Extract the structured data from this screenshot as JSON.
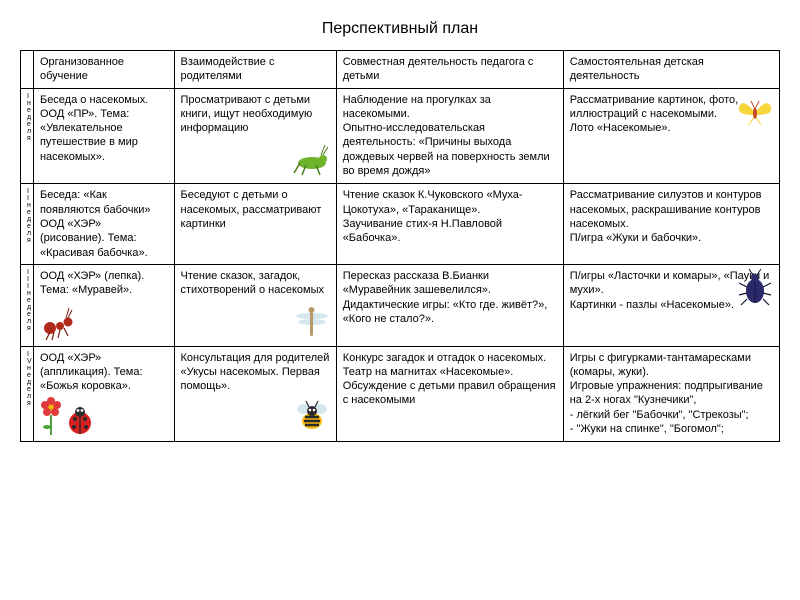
{
  "title": "Перспективный план",
  "headers": {
    "h0": "",
    "h1": "Организованное обучение",
    "h2": "Взаимодействие с родителями",
    "h3": "Совместная деятельность педагога с детьми",
    "h4": "Самостоятельная детская деятельность"
  },
  "weeks": {
    "w1": "I неделя",
    "w2": "II неделя",
    "w3": "III неделя",
    "w4": "IV неделя"
  },
  "rows": {
    "r1": {
      "c1": "Беседа о насекомых. ООД «ПР». Тема: «Увлекательное путешествие в мир насекомых».",
      "c2": "Просматривают с детьми книги, ищут необходимую информацию",
      "c3": "Наблюдение на прогулках за насекомыми.\nОпытно-исследовательская деятельность: «Причины выхода дождевых червей на поверхность земли во время дождя»",
      "c4": "Рассматривание картинок, фото, иллюстраций с насекомыми.\nЛото «Насекомые»."
    },
    "r2": {
      "c1": "Беседа: «Как появляются бабочки» ООД «ХЭР» (рисование). Тема: «Красивая бабочка».",
      "c2": "Беседуют с детьми о насекомых, рассматривают картинки",
      "c3": "Чтение сказок К.Чуковского «Муха-Цокотуха», «Тараканище».\nЗаучивание стих-я Н.Павловой «Бабочка».",
      "c4": "Рассматривание силуэтов и контуров насекомых, раскрашивание контуров насекомых.\nП/игра «Жуки и бабочки»."
    },
    "r3": {
      "c1": "ООД «ХЭР» (лепка). Тема: «Муравей».",
      "c2": "Чтение сказок, загадок, стихотворений о насекомых",
      "c3": "Пересказ рассказа В.Бианки «Муравейник зашевелился».\nДидактические игры: «Кто где. живёт?», «Кого не стало?».",
      "c4": "П/игры «Ласточки и комары», «Пауки и мухи».\n Картинки - пазлы «Насекомые»."
    },
    "r4": {
      "c1": "ООД «ХЭР» (аппликация). Тема: «Божья коровка».",
      "c2": "Консультация для родителей «Укусы насекомых. Первая помощь».",
      "c3": "Конкурс загадок и отгадок о насекомых.\nТеатр на магнитах «Насекомые».\nОбсуждение с детьми правил обращения с насекомыми",
      "c4": "Игры с фигурками-тантамаресками (комары, жуки).\nИгровые упражнения: подпрыгивание на 2-х ногах \"Кузнечики\",\n- лёгкий бег \"Бабочки\", \"Стрекозы\";\n - \"Жуки на спинке\", \"Богомол\";"
    }
  },
  "colors": {
    "grasshopper": "#6fb22c",
    "butterfly_wing": "#f6d63a",
    "butterfly_body": "#c74a28",
    "ant": "#b02a1a",
    "dragonfly_body": "#b89a6a",
    "dragonfly_wing": "#cfe3ea",
    "beetle": "#2a2a6a",
    "ladybug_red": "#d71f1f",
    "bee_yellow": "#f2b90f",
    "bee_black": "#2b2b2b",
    "flower": "#e03a3a",
    "stem": "#4da33a"
  }
}
